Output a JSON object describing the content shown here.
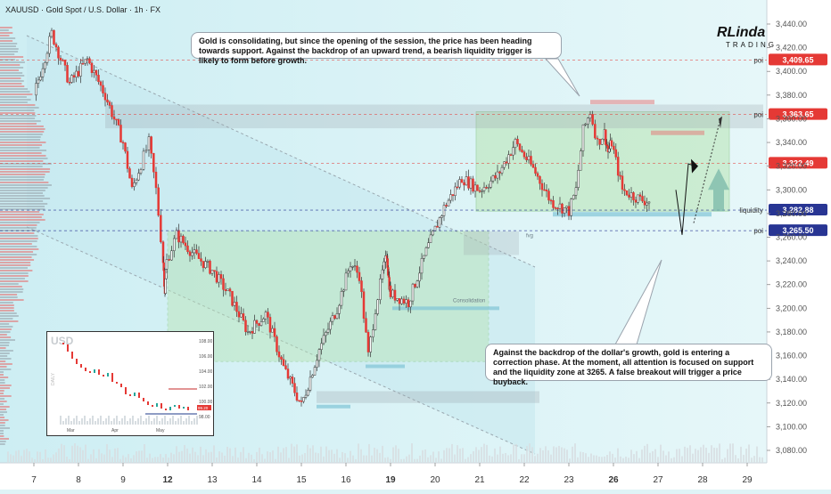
{
  "brand": {
    "logo_text": "RLinda",
    "logo_subtext": "TRADING"
  },
  "annotations": [
    "Gold is consolidating, but since the opening of the session, the price has been heading towards support. Against the backdrop of an upward trend, a bearish liquidity trigger is likely to form before growth.",
    "Against the backdrop of the dollar's growth, gold is entering a correction phase. At the moment, all attention is focused on support and the liquidity zone at 3265. A false breakout will trigger a price buyback."
  ],
  "chart_data": {
    "type": "candlestick",
    "title": "XAUUSD · Gold Spot / U.S. Dollar · 1h · FX",
    "y_ticks": [
      3440,
      3420,
      3400,
      3380,
      3360,
      3340,
      3320,
      3300,
      3280,
      3260,
      3240,
      3220,
      3200,
      3180,
      3160,
      3140,
      3120,
      3100,
      3080
    ],
    "y_tick_labels": [
      "3,440.00",
      "3,420.00",
      "3,400.00",
      "3,380.00",
      "3,360.00",
      "3,340.00",
      "3,320.00",
      "3,300.00",
      "3,280.00",
      "3,260.00",
      "3,240.00",
      "3,220.00",
      "3,200.00",
      "3,180.00",
      "3,160.00",
      "3,140.00",
      "3,120.00",
      "3,100.00",
      "3,080.00"
    ],
    "x_ticks": [
      "7",
      "8",
      "9",
      "12",
      "13",
      "14",
      "15",
      "16",
      "19",
      "20",
      "21",
      "22",
      "23",
      "26",
      "27",
      "28",
      "29"
    ],
    "x_bold": [
      "12",
      "19",
      "26"
    ],
    "ylim": [
      3070,
      3446
    ],
    "path": [
      [
        7,
        3380
      ],
      [
        7.4,
        3432
      ],
      [
        7.8,
        3390
      ],
      [
        8.2,
        3410
      ],
      [
        8.6,
        3380
      ],
      [
        9,
        3340
      ],
      [
        9.4,
        3300
      ],
      [
        9.8,
        3322
      ],
      [
        10.2,
        3340
      ],
      [
        10.6,
        3300
      ],
      [
        11,
        3240
      ],
      [
        11.4,
        3215
      ],
      [
        11.8,
        3240
      ],
      [
        12.2,
        3262
      ],
      [
        12.6,
        3245
      ],
      [
        13,
        3232
      ],
      [
        13.4,
        3210
      ],
      [
        13.8,
        3180
      ],
      [
        14.2,
        3195
      ],
      [
        14.6,
        3150
      ],
      [
        15,
        3118
      ],
      [
        15.4,
        3165
      ],
      [
        15.8,
        3200
      ],
      [
        16.2,
        3238
      ],
      [
        16.6,
        3228
      ],
      [
        17,
        3160
      ],
      [
        17.4,
        3200
      ],
      [
        17.8,
        3230
      ],
      [
        18.2,
        3245
      ],
      [
        18.6,
        3225
      ],
      [
        19,
        3212
      ],
      [
        19.4,
        3205
      ],
      [
        19.8,
        3248
      ],
      [
        20.2,
        3285
      ],
      [
        20.6,
        3310
      ],
      [
        21,
        3300
      ],
      [
        21.4,
        3312
      ],
      [
        21.8,
        3340
      ],
      [
        22.2,
        3318
      ],
      [
        22.6,
        3290
      ],
      [
        23,
        3282
      ],
      [
        23.4,
        3300
      ],
      [
        23.8,
        3350
      ],
      [
        24.2,
        3366
      ],
      [
        24.6,
        3340
      ],
      [
        25,
        3348
      ],
      [
        25.4,
        3332
      ],
      [
        25.8,
        3340
      ],
      [
        26.2,
        3300
      ],
      [
        26.6,
        3292
      ],
      [
        26.8,
        3290
      ]
    ],
    "levels": [
      {
        "value": 3409.65,
        "label": "3,409.65",
        "tag": "poi",
        "color": "#e53935"
      },
      {
        "value": 3363.65,
        "label": "3,363.65",
        "tag": "poi",
        "color": "#e53935"
      },
      {
        "value": 3322.49,
        "label": "3,322.49",
        "tag": "",
        "color": "#e53935"
      },
      {
        "value": 3282.88,
        "label": "3,282.88",
        "tag": "liquidity",
        "color": "#283593"
      },
      {
        "value": 3265.5,
        "label": "3,265.50",
        "tag": "poi",
        "color": "#283593"
      }
    ],
    "zone_labels": [
      "fvg",
      "Consolidation"
    ],
    "colors": {
      "up": "#26a69a",
      "down": "#e53935",
      "upBody": "#ffffff",
      "zone": "#b7e4b3",
      "axis": "#555555"
    },
    "inset": {
      "title": "USD",
      "y_ticks": [
        "108.00",
        "106.00",
        "104.00",
        "102.00",
        "100.00",
        "98.00"
      ],
      "x_labels": [
        "Mar",
        "Apr",
        "May"
      ],
      "side_label": "DAILY",
      "last_label": "99.20"
    }
  }
}
